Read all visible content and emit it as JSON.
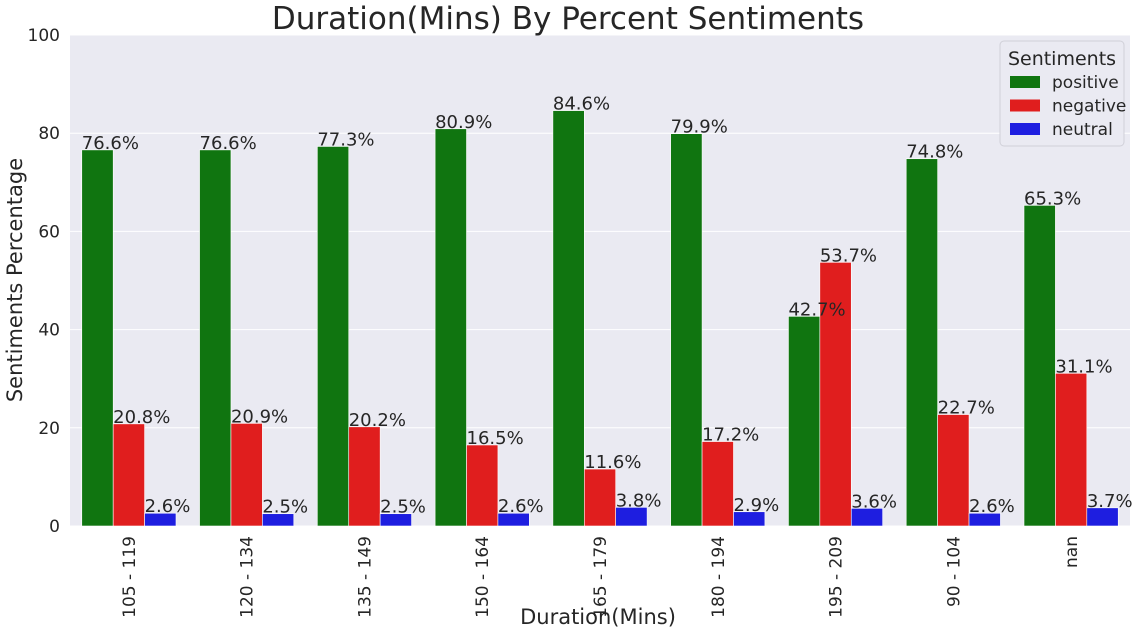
{
  "chart_data": {
    "type": "bar",
    "title": "Duration(Mins) By Percent Sentiments",
    "xlabel": "Duration(Mins)",
    "ylabel": "Sentiments Percentage",
    "ylim": [
      0,
      100
    ],
    "yticks": [
      "0",
      "20",
      "40",
      "60",
      "80",
      "100"
    ],
    "grid": true,
    "categories": [
      "105 - 119",
      "120 - 134",
      "135 - 149",
      "150 - 164",
      "165 - 179",
      "180 - 194",
      "195 - 209",
      "90 - 104",
      "nan"
    ],
    "series": [
      {
        "name": "positive",
        "color": "#107510",
        "values": [
          76.6,
          76.6,
          77.3,
          80.9,
          84.6,
          79.9,
          42.7,
          74.8,
          65.3
        ],
        "labels": [
          "76.6%",
          "76.6%",
          "77.3%",
          "80.9%",
          "84.6%",
          "79.9%",
          "42.7%",
          "74.8%",
          "65.3%"
        ]
      },
      {
        "name": "negative",
        "color": "#e01e1e",
        "values": [
          20.8,
          20.9,
          20.2,
          16.5,
          11.6,
          17.2,
          53.7,
          22.7,
          31.1
        ],
        "labels": [
          "20.8%",
          "20.9%",
          "20.2%",
          "16.5%",
          "11.6%",
          "17.2%",
          "53.7%",
          "22.7%",
          "31.1%"
        ]
      },
      {
        "name": "neutral",
        "color": "#1e1ee0",
        "values": [
          2.6,
          2.5,
          2.5,
          2.6,
          3.8,
          2.9,
          3.6,
          2.6,
          3.7
        ],
        "labels": [
          "2.6%",
          "2.5%",
          "2.5%",
          "2.6%",
          "3.8%",
          "2.9%",
          "3.6%",
          "2.6%",
          "3.7%"
        ]
      }
    ],
    "legend": {
      "title": "Sentiments",
      "position": "top-right"
    },
    "colors": {
      "plot_background": "#eaeaf2",
      "grid": "#ffffff"
    }
  }
}
